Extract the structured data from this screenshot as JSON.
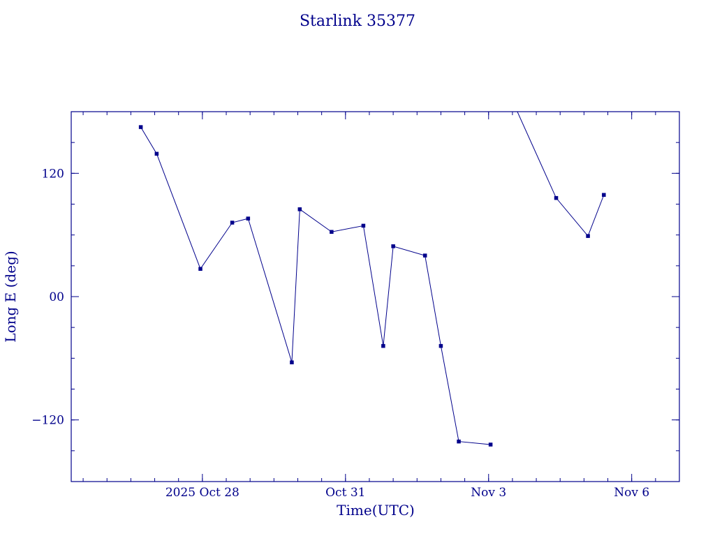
{
  "chart_data": {
    "type": "line",
    "title": "Starlink 35377",
    "xlabel": "Time(UTC)",
    "ylabel": "Long E (deg)",
    "x_ticks": [
      {
        "label": "2025 Oct 28",
        "value": "2025-10-28"
      },
      {
        "label": "Oct 31",
        "value": "2025-10-31"
      },
      {
        "label": "Nov  3",
        "value": "2025-11-03"
      },
      {
        "label": "Nov  6",
        "value": "2025-11-06"
      }
    ],
    "y_ticks": [
      {
        "label": "120",
        "value": 120
      },
      {
        "label": "00",
        "value": 0
      },
      {
        "label": "−120",
        "value": -120
      }
    ],
    "xlim": [
      "2025-10-25 06:00",
      "2025-11-07 00:00"
    ],
    "ylim": [
      -180,
      180
    ],
    "grid": false,
    "color": "#00008b",
    "series": [
      {
        "points": [
          {
            "t": "2025-10-26 17:00",
            "y": 165
          },
          {
            "t": "2025-10-27 01:00",
            "y": 139
          },
          {
            "t": "2025-10-27 23:00",
            "y": 27
          },
          {
            "t": "2025-10-28 15:00",
            "y": 72
          },
          {
            "t": "2025-10-28 23:00",
            "y": 76
          },
          {
            "t": "2025-10-29 21:00",
            "y": -64
          },
          {
            "t": "2025-10-30 01:00",
            "y": 85
          },
          {
            "t": "2025-10-30 17:00",
            "y": 63
          },
          {
            "t": "2025-10-31 09:00",
            "y": 69
          },
          {
            "t": "2025-10-31 19:00",
            "y": -48
          },
          {
            "t": "2025-11-01 00:00",
            "y": 49
          },
          {
            "t": "2025-11-01 16:00",
            "y": 40
          },
          {
            "t": "2025-11-02 00:00",
            "y": -48
          },
          {
            "t": "2025-11-02 09:00",
            "y": -141
          },
          {
            "t": "2025-11-03 01:00",
            "y": -144
          }
        ]
      },
      {
        "points": [
          {
            "t": "2025-11-03 14:00",
            "y": 182
          },
          {
            "t": "2025-11-04 10:00",
            "y": 96
          },
          {
            "t": "2025-11-05 02:00",
            "y": 59
          },
          {
            "t": "2025-11-05 10:00",
            "y": 99
          }
        ]
      }
    ]
  }
}
